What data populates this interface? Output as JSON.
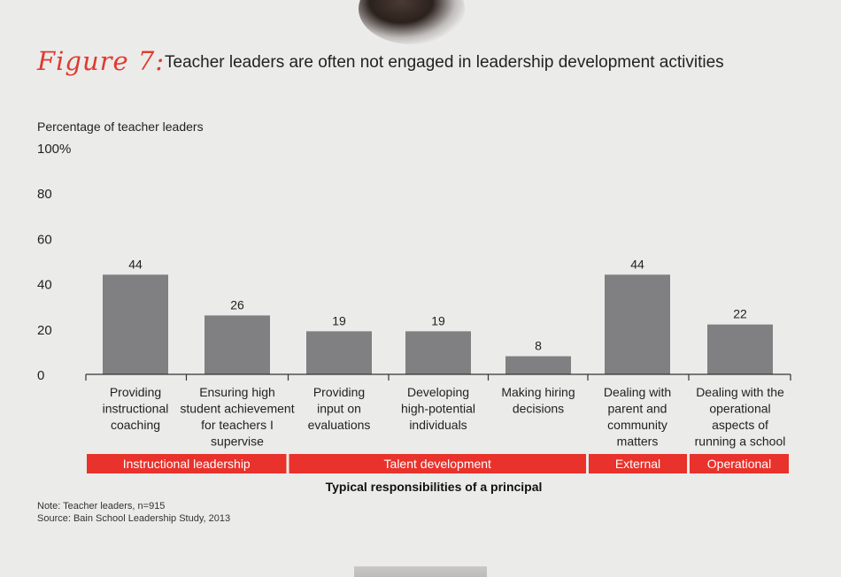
{
  "figure_tag": "Figure 7:",
  "title": "Teacher leaders are often not engaged in leadership development activities",
  "chart_data": {
    "type": "bar",
    "ylabel": "Percentage of teacher leaders",
    "xlabel": "Typical responsibilities of a principal",
    "ylim": [
      0,
      100
    ],
    "yticks": [
      "0",
      "20",
      "40",
      "60",
      "80",
      "100%"
    ],
    "ytick_values": [
      0,
      20,
      40,
      60,
      80,
      100
    ],
    "grid": false,
    "categories": [
      [
        "Providing",
        "instructional",
        "coaching"
      ],
      [
        "Ensuring high",
        "student achievement",
        "for teachers I",
        "supervise"
      ],
      [
        "Providing",
        "input on",
        "evaluations"
      ],
      [
        "Developing",
        "high-potential",
        "individuals"
      ],
      [
        "Making hiring",
        "decisions"
      ],
      [
        "Dealing with",
        "parent and",
        "community",
        "matters"
      ],
      [
        "Dealing with the",
        "operational",
        "aspects of",
        "running a school"
      ]
    ],
    "values": [
      44,
      26,
      19,
      19,
      8,
      44,
      22
    ],
    "groups": [
      {
        "label": "Instructional leadership",
        "span": [
          0,
          1
        ]
      },
      {
        "label": "Talent development",
        "span": [
          2,
          4
        ]
      },
      {
        "label": "External",
        "span": [
          5,
          5
        ]
      },
      {
        "label": "Operational",
        "span": [
          6,
          6
        ]
      }
    ],
    "colors": {
      "bar": "#808083",
      "group_band": "#e8322b",
      "axis": "#333333"
    }
  },
  "note": "Note: Teacher leaders, n=915",
  "source": "Source: Bain School Leadership Study, 2013"
}
